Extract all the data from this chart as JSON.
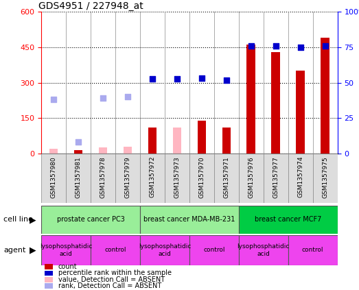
{
  "title": "GDS4951 / 227948_at",
  "samples": [
    "GSM1357980",
    "GSM1357981",
    "GSM1357978",
    "GSM1357979",
    "GSM1357972",
    "GSM1357973",
    "GSM1357970",
    "GSM1357971",
    "GSM1357976",
    "GSM1357977",
    "GSM1357974",
    "GSM1357975"
  ],
  "count_values": [
    null,
    15,
    null,
    null,
    110,
    null,
    140,
    110,
    460,
    430,
    350,
    490
  ],
  "count_absent": [
    22,
    null,
    28,
    30,
    null,
    110,
    null,
    null,
    null,
    null,
    null,
    null
  ],
  "rank_values": [
    null,
    null,
    null,
    null,
    315,
    315,
    320,
    310,
    455,
    455,
    450,
    455
  ],
  "rank_absent": [
    230,
    50,
    235,
    240,
    null,
    null,
    null,
    null,
    null,
    null,
    null,
    null
  ],
  "ylim_left": [
    0,
    600
  ],
  "ylim_right": [
    0,
    100
  ],
  "yticks_left": [
    0,
    150,
    300,
    450,
    600
  ],
  "ytick_labels_left": [
    "0",
    "150",
    "300",
    "450",
    "600"
  ],
  "yticks_right": [
    0,
    25,
    50,
    75,
    100
  ],
  "ytick_labels_right": [
    "0",
    "25",
    "50",
    "75",
    "100%"
  ],
  "bar_color_present": "#CC0000",
  "bar_color_absent": "#FFB6C1",
  "dot_color_present": "#0000CC",
  "dot_color_absent": "#AAAAEE",
  "bar_width": 0.35,
  "dot_size": 40,
  "cell_line_label": "cell line",
  "agent_label": "agent",
  "cell_line_data": [
    {
      "start": 0,
      "end": 4,
      "label": "prostate cancer PC3",
      "color": "#99EE99"
    },
    {
      "start": 4,
      "end": 8,
      "label": "breast cancer MDA-MB-231",
      "color": "#99EE99"
    },
    {
      "start": 8,
      "end": 12,
      "label": "breast cancer MCF7",
      "color": "#00CC44"
    }
  ],
  "agent_data": [
    {
      "start": 0,
      "end": 2,
      "label": "lysophosphatidic\nacid",
      "color": "#EE44EE"
    },
    {
      "start": 2,
      "end": 4,
      "label": "control",
      "color": "#EE44EE"
    },
    {
      "start": 4,
      "end": 6,
      "label": "lysophosphatidic\nacid",
      "color": "#EE44EE"
    },
    {
      "start": 6,
      "end": 8,
      "label": "control",
      "color": "#EE44EE"
    },
    {
      "start": 8,
      "end": 10,
      "label": "lysophosphatidic\nacid",
      "color": "#EE44EE"
    },
    {
      "start": 10,
      "end": 12,
      "label": "control",
      "color": "#EE44EE"
    }
  ],
  "legend_items": [
    {
      "label": "count",
      "color": "#CC0000"
    },
    {
      "label": "percentile rank within the sample",
      "color": "#0000CC"
    },
    {
      "label": "value, Detection Call = ABSENT",
      "color": "#FFB6C1"
    },
    {
      "label": "rank, Detection Call = ABSENT",
      "color": "#AAAAEE"
    }
  ]
}
